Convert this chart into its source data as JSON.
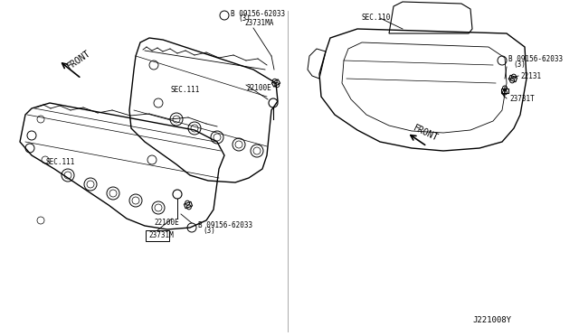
{
  "bg_color": "#ffffff",
  "line_color": "#000000",
  "light_line_color": "#888888",
  "fig_width": 6.4,
  "fig_height": 3.72,
  "dpi": 100,
  "labels": {
    "top_left_part1": "B 09156-62033",
    "top_left_part1b": "(3)",
    "top_left_part2": "23731MA",
    "top_left_sec": "SEC.111",
    "top_left_22100e": "22100E",
    "bottom_left_sec": "SEC.111",
    "bottom_22100e": "22100E",
    "bottom_23731m": "23731M",
    "bottom_bolt": "B 09156-62033",
    "bottom_bolt2": "(3)",
    "front_left": "FRONT",
    "right_sec": "SEC.110",
    "right_22131": "22131",
    "right_23731t": "23731T",
    "right_bolt": "B 09156-62033",
    "right_bolt2": "(3)",
    "right_front": "FRONT",
    "diagram_code": "J221008Y"
  }
}
